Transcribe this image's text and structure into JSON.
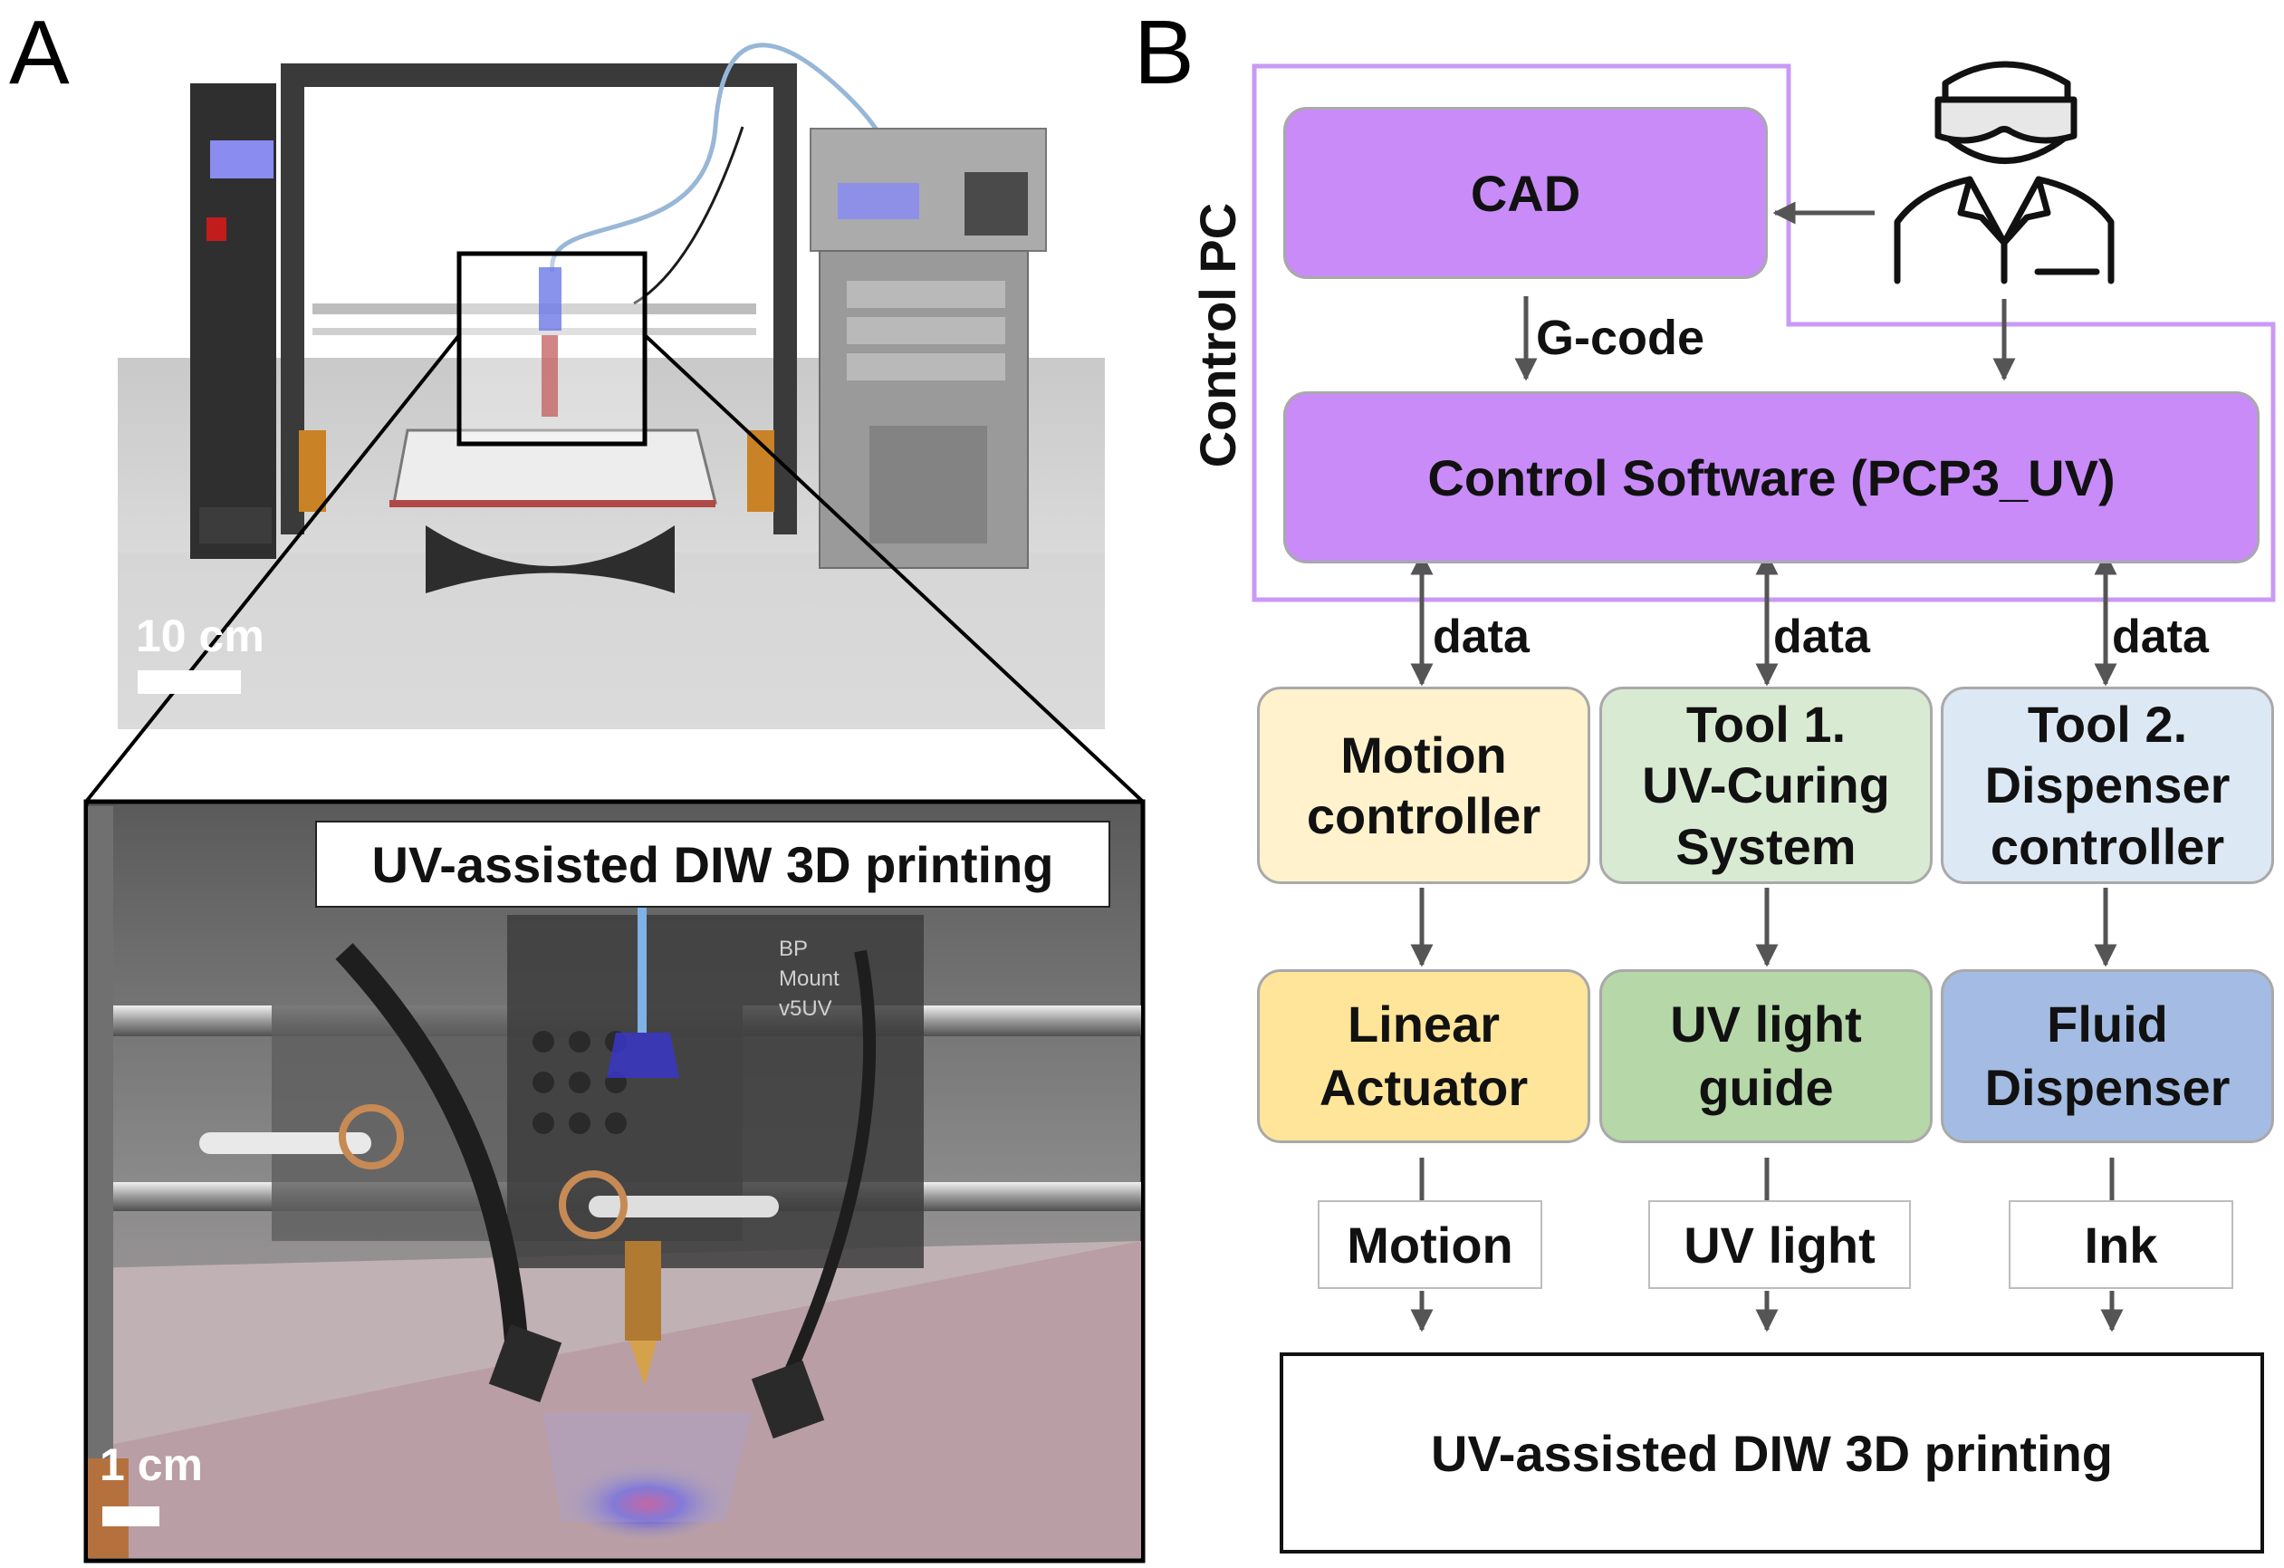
{
  "panelA": {
    "letter": "A",
    "scale_top": "10 cm",
    "scale_bottom": "1 cm",
    "zoom_caption": "UV-assisted DIW 3D printing",
    "mount_text_1": "BP",
    "mount_text_2": "Mount",
    "mount_text_3": "v5UV"
  },
  "panelB": {
    "letter": "B",
    "control_pc": "Control PC",
    "cad": "CAD",
    "gcode": "G-code",
    "control_software": "Control Software (PCP3_UV)",
    "data_labels": [
      "data",
      "data",
      "data"
    ],
    "controllers": [
      {
        "label": "Motion\ncontroller",
        "color": "#fff2cc"
      },
      {
        "label": "Tool 1.\nUV-Curing\nSystem",
        "color": "#d9ead3"
      },
      {
        "label": "Tool 2.\nDispenser\ncontroller",
        "color": "#dde8f5"
      }
    ],
    "devices": [
      {
        "label": "Linear\nActuator",
        "color": "#ffe599"
      },
      {
        "label": "UV light\nguide",
        "color": "#b6d7a8"
      },
      {
        "label": "Fluid\nDispenser",
        "color": "#a4bce3"
      }
    ],
    "outputs": [
      "Motion",
      "UV light",
      "Ink"
    ],
    "final": "UV-assisted DIW 3D printing",
    "accent": "#c88bf8",
    "pc_border": "#c99af5",
    "arrow_color": "#555555"
  }
}
